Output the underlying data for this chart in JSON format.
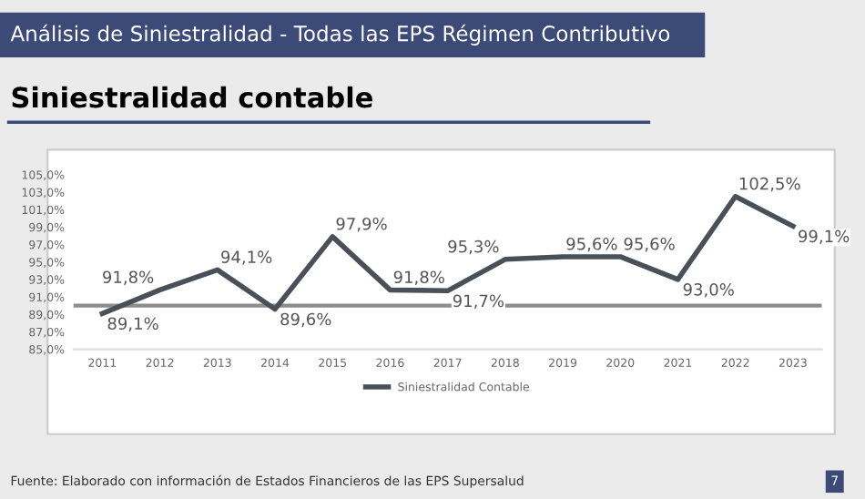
{
  "chart_data": {
    "type": "line",
    "title": "Análisis de Siniestralidad - Todas las EPS Régimen Contributivo",
    "subtitle": "Siniestralidad contable",
    "categories": [
      "2011",
      "2012",
      "2013",
      "2014",
      "2015",
      "2016",
      "2017",
      "2018",
      "2019",
      "2020",
      "2021",
      "2022",
      "2023"
    ],
    "series": [
      {
        "name": "Siniestralidad Contable",
        "color": "#4a5058",
        "values": [
          89.1,
          91.8,
          94.1,
          89.6,
          97.9,
          91.8,
          91.7,
          95.3,
          95.6,
          95.6,
          93.0,
          102.5,
          99.1
        ],
        "value_labels": [
          "89,1%",
          "91,8%",
          "94,1%",
          "89,6%",
          "97,9%",
          "91,8%",
          "91,7%",
          "95,3%",
          "95,6%",
          "95,6%",
          "93,0%",
          "102,5%",
          "99,1%"
        ]
      }
    ],
    "ylim": [
      85,
      105
    ],
    "yticks": [
      {
        "value": 85,
        "label": "85,0%"
      },
      {
        "value": 87,
        "label": "87,0%"
      },
      {
        "value": 89,
        "label": "89,0%"
      },
      {
        "value": 91,
        "label": "91,0%"
      },
      {
        "value": 93,
        "label": "93,0%"
      },
      {
        "value": 95,
        "label": "95,0%"
      },
      {
        "value": 97,
        "label": "97,0%"
      },
      {
        "value": 99,
        "label": "99,0%"
      },
      {
        "value": 101,
        "label": "101,0%"
      },
      {
        "value": 103,
        "label": "103,0%"
      },
      {
        "value": 105,
        "label": "105,0%"
      }
    ],
    "ref_lines": [
      {
        "axis": "y",
        "value": 90,
        "color": "#8c8c8c"
      }
    ],
    "grid": false,
    "legend": "bottom",
    "marker": "none",
    "line_style": "solid",
    "annotations": [
      "Fuente: Elaborado con información de Estados Financieros de las EPS Supersalud",
      "7"
    ]
  }
}
